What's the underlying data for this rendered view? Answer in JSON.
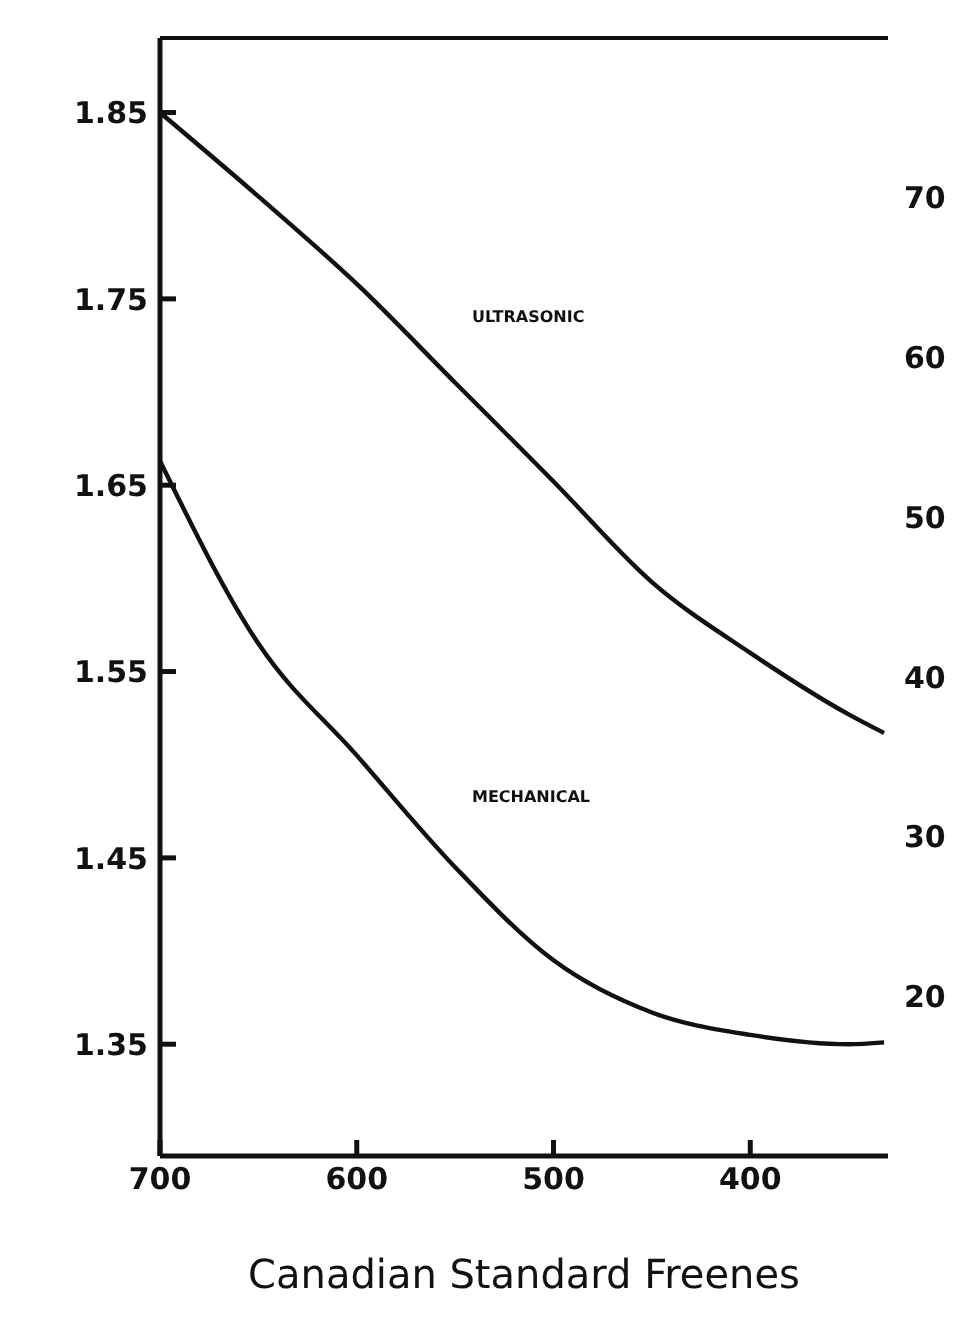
{
  "chart_data": {
    "type": "line",
    "xlabel": "Canadian Standard Freenes",
    "x": [
      700,
      650,
      600,
      550,
      500,
      450,
      400,
      350,
      332
    ],
    "series": [
      {
        "color": "#111111",
        "values": [
          1.85,
          1.805,
          1.758,
          1.705,
          1.652,
          1.598,
          1.56,
          1.527,
          1.517
        ]
      },
      {
        "color": "#111111",
        "values": [
          1.663,
          1.565,
          1.505,
          1.445,
          1.395,
          1.367,
          1.355,
          1.35,
          1.351
        ]
      }
    ],
    "annotations": [
      "ULTRASONIC",
      "MECHANICAL"
    ],
    "xlim": [
      700,
      330
    ],
    "xticks": [
      700,
      600,
      500,
      400
    ],
    "ylim": [
      1.29,
      1.89
    ],
    "yticks": [
      1.35,
      1.45,
      1.55,
      1.65,
      1.75,
      1.85
    ],
    "y2lim": [
      10,
      80
    ],
    "y2ticks": [
      20,
      30,
      40,
      50,
      60,
      70
    ],
    "grid": false,
    "legend": false,
    "marker": "none",
    "line_style": "solid"
  }
}
